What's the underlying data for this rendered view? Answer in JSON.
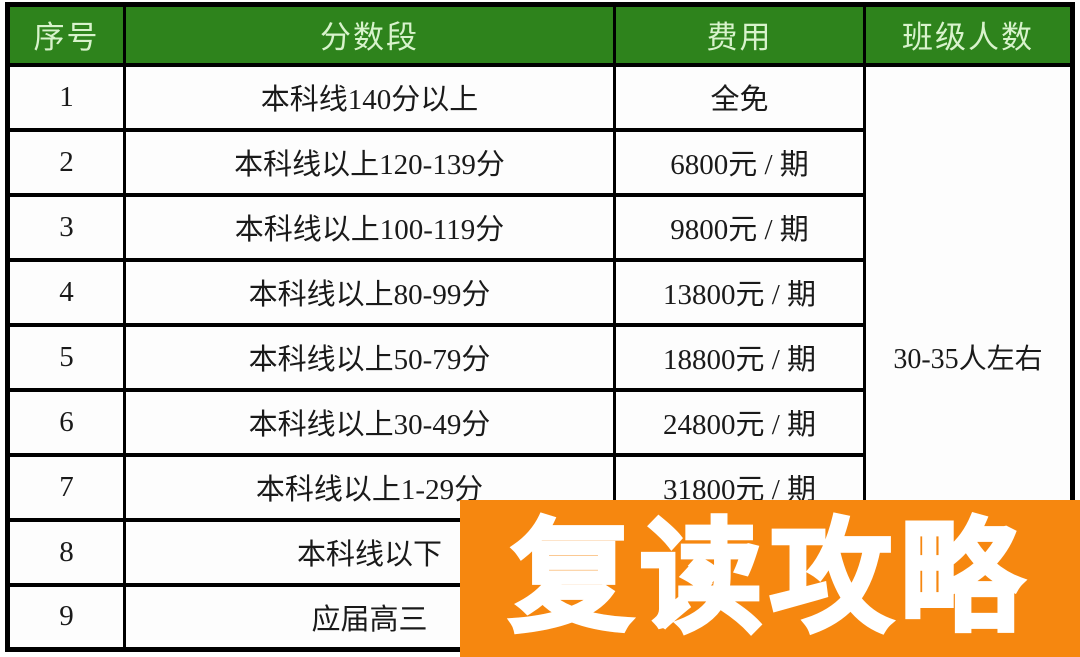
{
  "table": {
    "headers": {
      "no": "序号",
      "range": "分数段",
      "fee": "费用",
      "size": "班级人数"
    },
    "rows": [
      {
        "no": "1",
        "range": "本科线140分以上",
        "fee": "全免"
      },
      {
        "no": "2",
        "range": "本科线以上120-139分",
        "fee": "6800元 / 期"
      },
      {
        "no": "3",
        "range": "本科线以上100-119分",
        "fee": "9800元 / 期"
      },
      {
        "no": "4",
        "range": "本科线以上80-99分",
        "fee": "13800元 / 期"
      },
      {
        "no": "5",
        "range": "本科线以上50-79分",
        "fee": "18800元 / 期"
      },
      {
        "no": "6",
        "range": "本科线以上30-49分",
        "fee": "24800元 / 期"
      },
      {
        "no": "7",
        "range": "本科线以上1-29分",
        "fee": "31800元 / 期"
      },
      {
        "no": "8",
        "range": "本科线以下",
        "fee": ""
      },
      {
        "no": "9",
        "range": "应届高三",
        "fee": ""
      }
    ],
    "class_size": "30-35人左右"
  },
  "banner": {
    "text": "复读攻略"
  },
  "colors": {
    "header_green": "#2e831c",
    "header_text": "#d8f3cc",
    "banner_orange": "#f6870f",
    "banner_text": "#ffffff",
    "border": "#000000"
  }
}
